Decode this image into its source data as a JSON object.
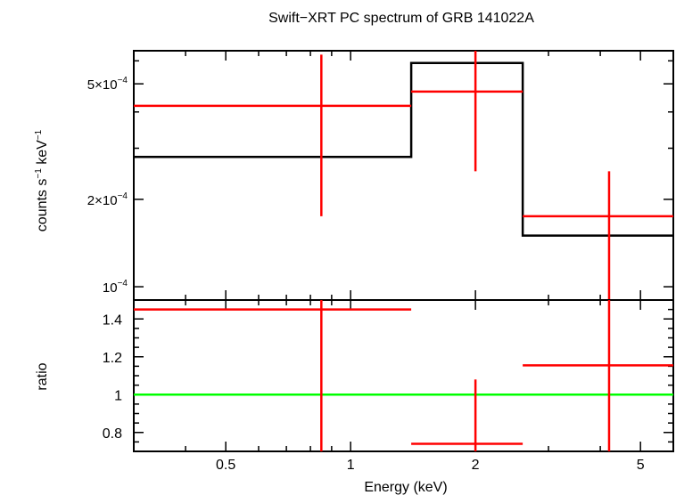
{
  "chart_data": {
    "type": "spectrum",
    "title": "Swift−XRT PC spectrum of GRB 141022A",
    "xlabel": "Energy (keV)",
    "x_scale": "log",
    "xlim": [
      0.3,
      6.0
    ],
    "x_ticks": [
      {
        "value": 0.5,
        "label": "0.5"
      },
      {
        "value": 1,
        "label": "1"
      },
      {
        "value": 2,
        "label": "2"
      },
      {
        "value": 5,
        "label": "5"
      }
    ],
    "top_panel": {
      "ylabel_main": "counts s",
      "ylabel_exp1": "−1",
      "ylabel_mid": " keV",
      "ylabel_exp2": "−1",
      "y_scale": "log",
      "ylim": [
        9e-05,
        0.00065
      ],
      "y_ticks": [
        {
          "value": 0.0001,
          "mantissa": "10",
          "exponent": "−4"
        },
        {
          "value": 0.0002,
          "mantissa": "2×10",
          "exponent": "−4"
        },
        {
          "value": 0.0005,
          "mantissa": "5×10",
          "exponent": "−4"
        }
      ],
      "data": [
        {
          "x": 0.85,
          "xlo": 0.3,
          "xhi": 1.4,
          "y": 0.00042,
          "ylo": 0.000175,
          "yhi": 0.00063
        },
        {
          "x": 2.0,
          "xlo": 1.4,
          "xhi": 2.6,
          "y": 0.00047,
          "ylo": 0.00025,
          "yhi": 0.00065
        },
        {
          "x": 4.2,
          "xlo": 2.6,
          "xhi": 6.0,
          "y": 0.000175,
          "ylo": 9e-05,
          "yhi": 0.00025
        }
      ],
      "model": [
        {
          "xlo": 0.3,
          "xhi": 1.4,
          "y": 0.00028
        },
        {
          "xlo": 1.4,
          "xhi": 2.6,
          "y": 0.00059
        },
        {
          "xlo": 2.6,
          "xhi": 6.0,
          "y": 0.00015
        }
      ]
    },
    "bottom_panel": {
      "ylabel": "ratio",
      "ylim": [
        0.7,
        1.5
      ],
      "y_ticks": [
        {
          "value": 0.8,
          "label": "0.8"
        },
        {
          "value": 1.0,
          "label": "1"
        },
        {
          "value": 1.2,
          "label": "1.2"
        },
        {
          "value": 1.4,
          "label": "1.4"
        }
      ],
      "reference_line": 1.0,
      "data": [
        {
          "x": 0.85,
          "xlo": 0.3,
          "xhi": 1.4,
          "y": 1.45,
          "ylo": 0.7,
          "yhi": 1.5
        },
        {
          "x": 2.0,
          "xlo": 1.4,
          "xhi": 2.6,
          "y": 0.74,
          "ylo": 0.7,
          "yhi": 1.08
        },
        {
          "x": 4.2,
          "xlo": 2.6,
          "xhi": 6.0,
          "y": 1.155,
          "ylo": 0.7,
          "yhi": 1.5
        }
      ]
    },
    "colors": {
      "data": "#ff0000",
      "model": "#000000",
      "reference": "#00ff00",
      "frame": "#000000"
    }
  }
}
